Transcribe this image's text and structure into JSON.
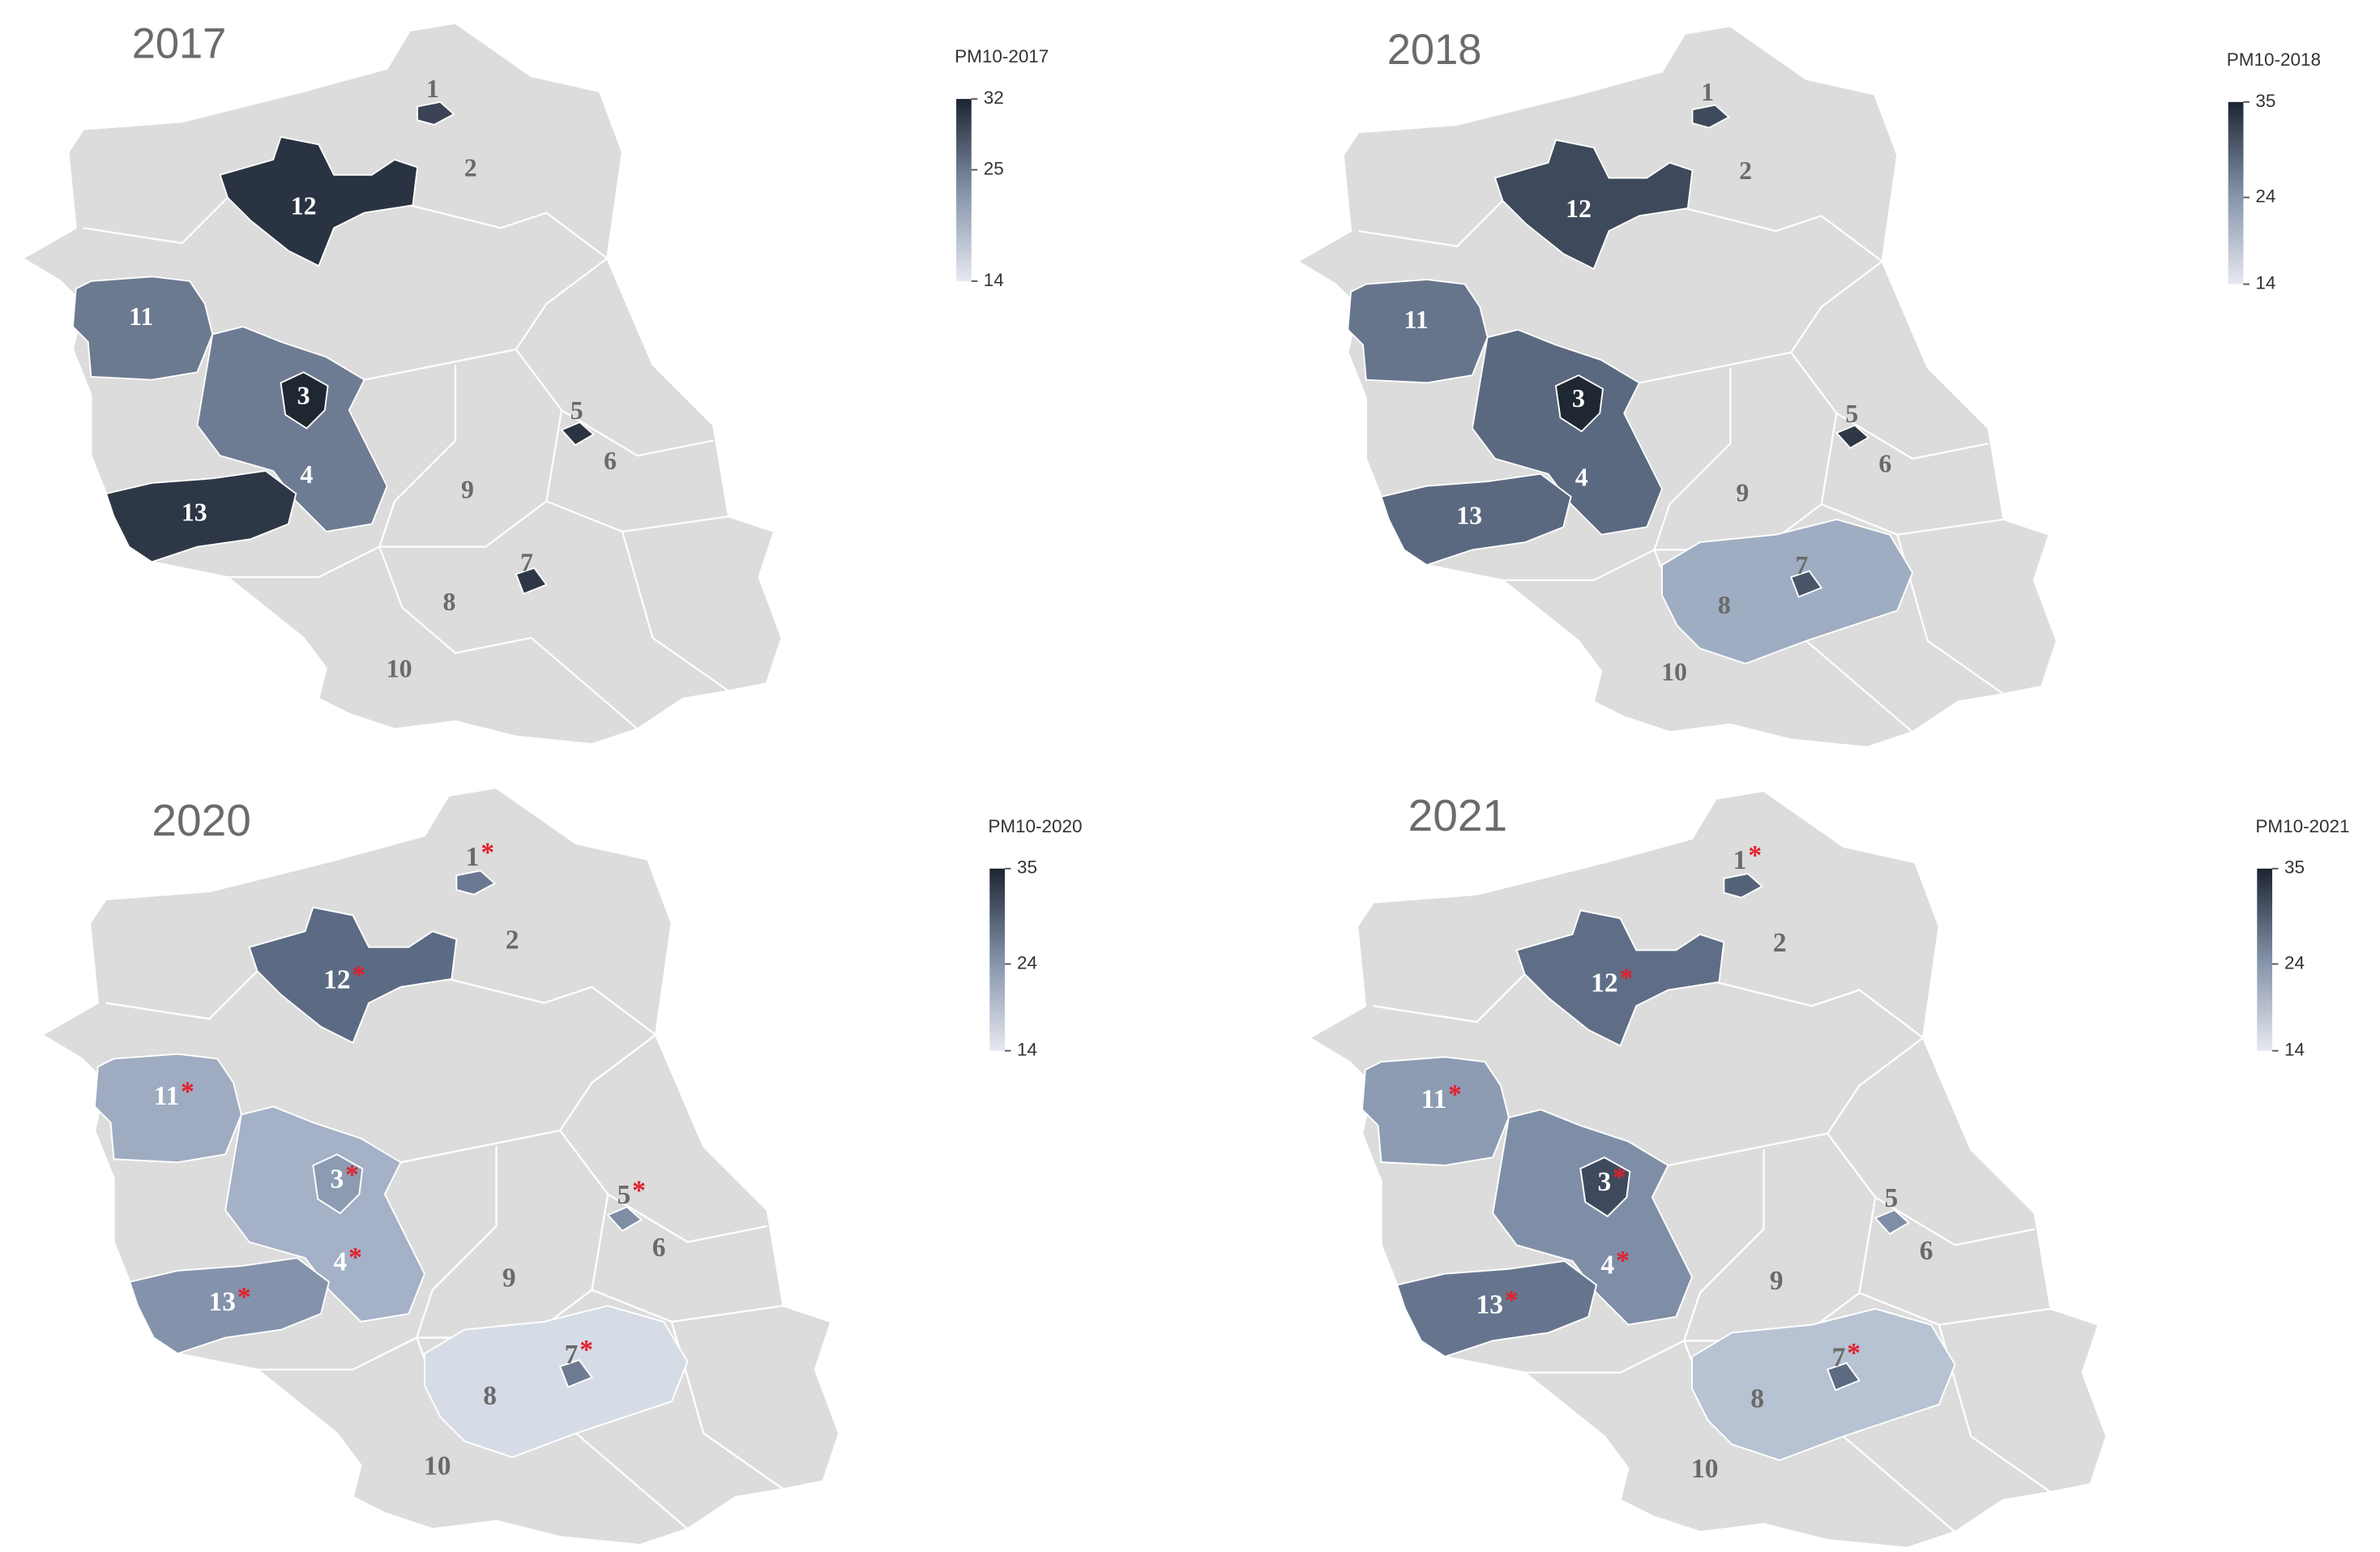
{
  "panels": [
    {
      "title": "2017",
      "star": "*",
      "legend": {
        "title": "PM10-2017",
        "lim": [
          14,
          32
        ],
        "ticks": [
          14,
          25,
          32
        ]
      },
      "regions": [
        {
          "label": "1",
          "color": "#3a4456"
        },
        {
          "label": "2"
        },
        {
          "label": "3",
          "color": "#1f2733"
        },
        {
          "label": "4",
          "color": "#6e7c93"
        },
        {
          "label": "5",
          "color": "#2a3342"
        },
        {
          "label": "6"
        },
        {
          "label": "7",
          "color": "#2e3746"
        },
        {
          "label": "8"
        },
        {
          "label": "9"
        },
        {
          "label": "10"
        },
        {
          "label": "11",
          "color": "#6c7a90"
        },
        {
          "label": "12",
          "color": "#2a3342"
        },
        {
          "label": "13",
          "color": "#2e3746"
        }
      ]
    },
    {
      "title": "2018",
      "star": "*",
      "legend": {
        "title": "PM10-2018",
        "lim": [
          14,
          35
        ],
        "ticks": [
          14,
          24,
          35
        ]
      },
      "regions": [
        {
          "label": "1",
          "color": "#3e4a5c"
        },
        {
          "label": "2"
        },
        {
          "label": "3",
          "color": "#1f2733"
        },
        {
          "label": "4",
          "color": "#5b6980"
        },
        {
          "label": "5",
          "color": "#2e3746"
        },
        {
          "label": "6"
        },
        {
          "label": "7",
          "color": "#4a5668"
        },
        {
          "label": "8",
          "color": "#9fadc2"
        },
        {
          "label": "9"
        },
        {
          "label": "10"
        },
        {
          "label": "11",
          "color": "#66758c"
        },
        {
          "label": "12",
          "color": "#3e4a5c"
        },
        {
          "label": "13",
          "color": "#5b6980"
        }
      ]
    },
    {
      "title": "2020",
      "star": "*",
      "legend": {
        "title": "PM10-2020",
        "lim": [
          14,
          35
        ],
        "ticks": [
          14,
          24,
          35
        ]
      },
      "regions": [
        {
          "label": "1",
          "color": "#6a7891",
          "starred": true
        },
        {
          "label": "2"
        },
        {
          "label": "3",
          "color": "#8d9bb2",
          "starred": true
        },
        {
          "label": "4",
          "color": "#a4b1c6",
          "starred": true
        },
        {
          "label": "5",
          "color": "#7f8ea6",
          "starred": true
        },
        {
          "label": "6"
        },
        {
          "label": "7",
          "color": "#6e7c93",
          "starred": true
        },
        {
          "label": "8",
          "color": "#d6dce6"
        },
        {
          "label": "9"
        },
        {
          "label": "10"
        },
        {
          "label": "11",
          "color": "#9eabc1",
          "starred": true
        },
        {
          "label": "12",
          "color": "#5c6b84",
          "starred": true
        },
        {
          "label": "13",
          "color": "#8493ab",
          "starred": true
        }
      ]
    },
    {
      "title": "2021",
      "star": "*",
      "legend": {
        "title": "PM10-2021",
        "lim": [
          14,
          35
        ],
        "ticks": [
          14,
          24,
          35
        ]
      },
      "regions": [
        {
          "label": "1",
          "color": "#556379",
          "starred": true
        },
        {
          "label": "2"
        },
        {
          "label": "3",
          "color": "#3e4a5c",
          "starred": true
        },
        {
          "label": "4",
          "color": "#7f8ea7",
          "starred": true
        },
        {
          "label": "5",
          "color": "#7f8ea6"
        },
        {
          "label": "6"
        },
        {
          "label": "7",
          "color": "#5c6a82",
          "starred": true
        },
        {
          "label": "8",
          "color": "#b7c2d3"
        },
        {
          "label": "9"
        },
        {
          "label": "10"
        },
        {
          "label": "11",
          "color": "#8d9bb3",
          "starred": true
        },
        {
          "label": "12",
          "color": "#5f6e86",
          "starred": true
        },
        {
          "label": "13",
          "color": "#66758d",
          "starred": true
        }
      ]
    }
  ]
}
